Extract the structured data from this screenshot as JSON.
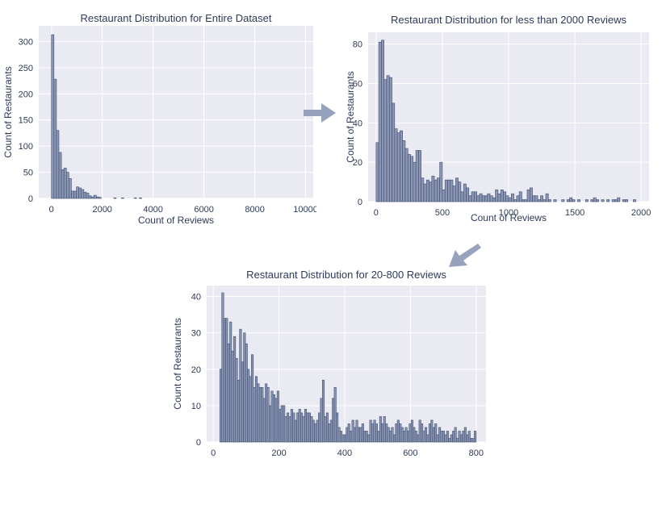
{
  "colors": {
    "plot_bg": "#eaeaf2",
    "grid": "#ffffff",
    "bar_face": "#8a96b4",
    "bar_edge": "#3f4d70",
    "text": "#2e3a59",
    "arrow": "#97a2bd"
  },
  "icons": {
    "arrow_right": "arrow-right-icon",
    "arrow_down_left": "arrow-down-left-icon"
  },
  "chart_data": [
    {
      "type": "bar",
      "title": "Restaurant Distribution for Entire Dataset",
      "xlabel": "Count of Reviews",
      "ylabel": "Count of Restaurants",
      "xlim": [
        -500,
        10300
      ],
      "ylim": [
        0,
        330
      ],
      "xticks": [
        "0",
        "2000",
        "4000",
        "6000",
        "8000",
        "10000"
      ],
      "yticks": [
        "0",
        "50",
        "100",
        "150",
        "200",
        "250",
        "300"
      ],
      "grid": true,
      "bin_width": 98,
      "x": [
        49,
        147,
        245,
        343,
        441,
        539,
        637,
        735,
        833,
        931,
        1029,
        1127,
        1225,
        1323,
        1421,
        1519,
        1617,
        1715,
        1813,
        1911,
        2500,
        2800,
        3300,
        3500
      ],
      "values": [
        313,
        228,
        130,
        88,
        55,
        58,
        50,
        38,
        14,
        14,
        22,
        20,
        17,
        12,
        10,
        5,
        3,
        6,
        3,
        2,
        1,
        1,
        1,
        1
      ]
    },
    {
      "type": "bar",
      "title": "Restaurant Distribution for less than 2000 Reviews",
      "xlabel": "Count of Reviews",
      "ylabel": "Count of Restaurants",
      "xlim": [
        -60,
        2060
      ],
      "ylim": [
        0,
        86
      ],
      "xticks": [
        "0",
        "500",
        "1000",
        "1500",
        "2000"
      ],
      "yticks": [
        "0",
        "20",
        "40",
        "60",
        "80"
      ],
      "grid": true,
      "bin_width": 20,
      "x": [
        10,
        30,
        50,
        70,
        90,
        110,
        130,
        150,
        170,
        190,
        210,
        230,
        250,
        270,
        290,
        310,
        330,
        350,
        370,
        390,
        410,
        430,
        450,
        470,
        490,
        510,
        530,
        550,
        570,
        590,
        610,
        630,
        650,
        670,
        690,
        710,
        730,
        750,
        770,
        790,
        810,
        830,
        850,
        870,
        890,
        910,
        930,
        950,
        970,
        990,
        1010,
        1030,
        1050,
        1070,
        1090,
        1110,
        1130,
        1150,
        1170,
        1190,
        1210,
        1230,
        1250,
        1270,
        1290,
        1310,
        1330,
        1350,
        1370,
        1390,
        1410,
        1430,
        1450,
        1470,
        1490,
        1510,
        1530,
        1550,
        1570,
        1590,
        1610,
        1630,
        1650,
        1670,
        1690,
        1710,
        1730,
        1750,
        1770,
        1790,
        1810,
        1830,
        1850,
        1870,
        1890,
        1910,
        1930,
        1950,
        1970,
        1990
      ],
      "values": [
        30,
        81,
        82,
        62,
        64,
        63,
        50,
        37,
        35,
        36,
        31,
        27,
        24,
        23,
        20,
        26,
        26,
        12,
        9,
        11,
        10,
        13,
        11,
        12,
        20,
        6,
        11,
        11,
        11,
        8,
        12,
        10,
        5,
        9,
        7,
        3,
        5,
        5,
        3,
        4,
        3,
        3,
        4,
        3,
        2,
        6,
        4,
        6,
        5,
        3,
        2,
        4,
        1,
        3,
        5,
        1,
        1,
        6,
        7,
        3,
        3,
        1,
        3,
        1,
        4,
        1,
        0,
        1,
        0,
        0,
        1,
        0,
        1,
        2,
        1,
        0,
        1,
        0,
        0,
        1,
        0,
        1,
        2,
        1,
        0,
        1,
        0,
        1,
        0,
        1,
        1,
        2,
        0,
        1,
        1,
        0,
        0,
        1,
        0,
        0
      ],
      "notes": []
    },
    {
      "type": "bar",
      "title": "Restaurant Distribution for 20-800 Reviews",
      "xlabel": "",
      "ylabel": "Count of Restaurants",
      "xlim": [
        -20,
        830
      ],
      "ylim": [
        0,
        43
      ],
      "xticks": [
        "0",
        "200",
        "400",
        "600",
        "800"
      ],
      "yticks": [
        "0",
        "10",
        "20",
        "30",
        "40"
      ],
      "grid": true,
      "bin_width": 6,
      "x": [
        23,
        29,
        35,
        41,
        47,
        53,
        59,
        65,
        71,
        77,
        83,
        89,
        95,
        101,
        107,
        113,
        119,
        125,
        131,
        137,
        143,
        149,
        155,
        161,
        167,
        173,
        179,
        185,
        191,
        197,
        203,
        209,
        215,
        221,
        227,
        233,
        239,
        245,
        251,
        257,
        263,
        269,
        275,
        281,
        287,
        293,
        299,
        305,
        311,
        317,
        323,
        329,
        335,
        341,
        347,
        353,
        359,
        365,
        371,
        377,
        383,
        389,
        395,
        401,
        407,
        413,
        419,
        425,
        431,
        437,
        443,
        449,
        455,
        461,
        467,
        473,
        479,
        485,
        491,
        497,
        503,
        509,
        515,
        521,
        527,
        533,
        539,
        545,
        551,
        557,
        563,
        569,
        575,
        581,
        587,
        593,
        599,
        605,
        611,
        617,
        623,
        629,
        635,
        641,
        647,
        653,
        659,
        665,
        671,
        677,
        683,
        689,
        695,
        701,
        707,
        713,
        719,
        725,
        731,
        737,
        743,
        749,
        755,
        761,
        767,
        773,
        779,
        785,
        791,
        797
      ],
      "values": [
        20,
        41,
        34,
        34,
        27,
        33,
        25,
        29,
        23,
        17,
        31,
        22,
        30,
        27,
        20,
        18,
        24,
        15,
        18,
        16,
        15,
        15,
        12,
        16,
        15,
        10,
        14,
        13,
        12,
        14,
        9,
        10,
        10,
        7,
        8,
        7,
        9,
        8,
        6,
        8,
        9,
        8,
        7,
        9,
        8,
        8,
        7,
        6,
        5,
        6,
        8,
        12,
        17,
        7,
        8,
        5,
        6,
        12,
        15,
        8,
        4,
        3,
        2,
        2,
        4,
        5,
        3,
        6,
        4,
        6,
        4,
        4,
        5,
        3,
        3,
        2,
        6,
        5,
        6,
        5,
        3,
        7,
        5,
        7,
        5,
        4,
        3,
        4,
        2,
        5,
        6,
        5,
        4,
        3,
        4,
        3,
        5,
        6,
        4,
        3,
        2,
        6,
        5,
        3,
        4,
        2,
        5,
        6,
        4,
        5,
        2,
        4,
        3,
        3,
        2,
        3,
        1,
        2,
        3,
        4,
        1,
        3,
        2,
        3,
        4,
        2,
        3,
        1,
        1,
        3
      ],
      "notes": []
    }
  ]
}
